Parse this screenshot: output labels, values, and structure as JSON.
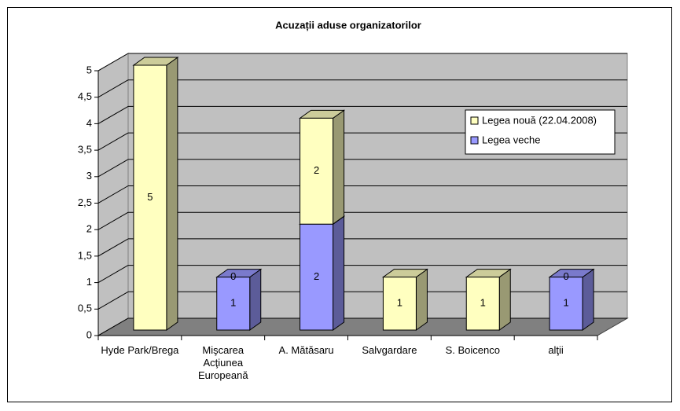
{
  "chart_data": {
    "type": "bar3d_stacked",
    "title": "Acuzații aduse organizatorilor",
    "categories": [
      "Hyde Park/Brega",
      "Mişcarea Acţiunea Europeană",
      "A. Mătăsaru",
      "Salvgardare",
      "S. Boicenco",
      "alţii"
    ],
    "series": [
      {
        "name": "Legea veche",
        "color": "#9999ff",
        "values": [
          0,
          1,
          2,
          0,
          0,
          1
        ]
      },
      {
        "name": "Legea nouă (22.04.2008)",
        "color": "#ffffc0",
        "values": [
          5,
          0,
          2,
          1,
          1,
          0
        ]
      }
    ],
    "ylim": [
      0,
      5
    ],
    "yticks": [
      0,
      {
        "value": 0.5,
        "label": "0,5"
      },
      1,
      {
        "value": 1.5,
        "label": "1,5"
      },
      2,
      {
        "value": 2.5,
        "label": "2,5"
      },
      3,
      {
        "value": 3.5,
        "label": "3,5"
      },
      4,
      {
        "value": 4.5,
        "label": "4,5"
      },
      5
    ],
    "grid": true,
    "legend": "right"
  }
}
